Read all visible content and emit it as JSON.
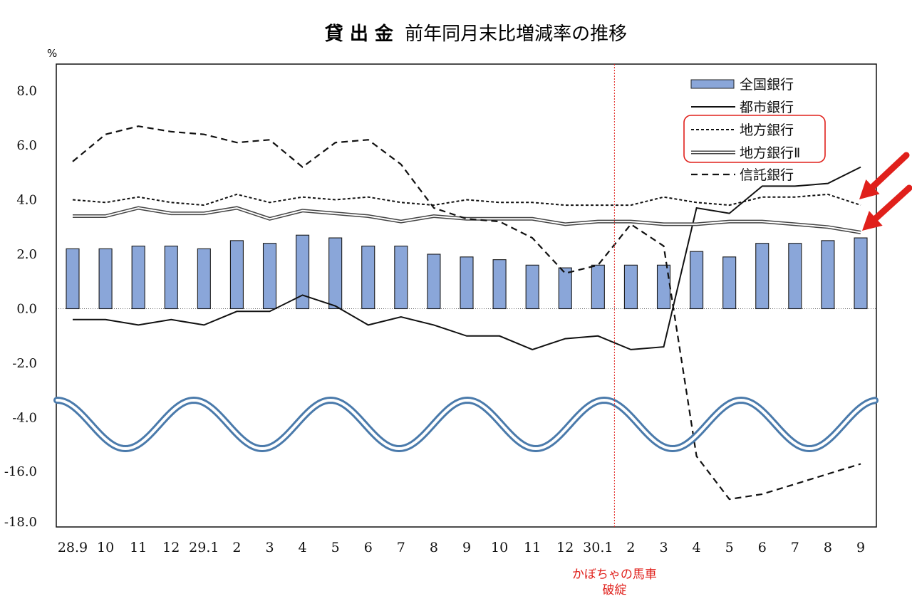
{
  "chart_data": {
    "type": "bar",
    "title": "貸 出 金 前年同月末比増減率の推移",
    "title_parts": {
      "bold": "貸 出 金",
      "rest": "前年同月末比増減率の推移"
    },
    "ylabel": "%",
    "yticks": [
      "8.0",
      "6.0",
      "4.0",
      "2.0",
      "0.0",
      "-2.0",
      "-4.0",
      "-16.0",
      "-18.0"
    ],
    "ylim": [
      -18.0,
      9.0
    ],
    "axis_break": "wave between -4.0 and -16.0",
    "grid": false,
    "legend_position": "top-right",
    "categories": [
      "28.9",
      "10",
      "11",
      "12",
      "29.1",
      "2",
      "3",
      "4",
      "5",
      "6",
      "7",
      "8",
      "9",
      "10",
      "11",
      "12",
      "30.1",
      "2",
      "3",
      "4",
      "5",
      "6",
      "7",
      "8",
      "9"
    ],
    "series": [
      {
        "name": "全国銀行",
        "style": "bar",
        "color": "#8aa6d9",
        "values": [
          2.2,
          2.2,
          2.3,
          2.3,
          2.2,
          2.5,
          2.4,
          2.7,
          2.6,
          2.3,
          2.3,
          2.0,
          1.9,
          1.8,
          1.6,
          1.5,
          1.6,
          1.6,
          1.6,
          2.1,
          1.9,
          2.4,
          2.4,
          2.5,
          2.6
        ]
      },
      {
        "name": "都市銀行",
        "style": "solid",
        "color": "#111111",
        "values": [
          -0.4,
          -0.4,
          -0.6,
          -0.4,
          -0.6,
          -0.1,
          -0.1,
          0.5,
          0.1,
          -0.6,
          -0.3,
          -0.6,
          -1.0,
          -1.0,
          -1.5,
          -1.1,
          -1.0,
          -1.5,
          -1.4,
          3.7,
          3.5,
          4.5,
          4.5,
          4.6,
          5.2
        ]
      },
      {
        "name": "地方銀行",
        "style": "dotted",
        "color": "#111111",
        "values": [
          4.0,
          3.9,
          4.1,
          3.9,
          3.8,
          4.2,
          3.9,
          4.1,
          4.0,
          4.1,
          3.9,
          3.8,
          4.0,
          3.9,
          3.9,
          3.8,
          3.8,
          3.8,
          4.1,
          3.9,
          3.8,
          4.1,
          4.1,
          4.2,
          3.8
        ]
      },
      {
        "name": "地方銀行Ⅱ",
        "style": "double",
        "color": "#555555",
        "values": [
          3.4,
          3.4,
          3.7,
          3.5,
          3.5,
          3.7,
          3.3,
          3.6,
          3.5,
          3.4,
          3.2,
          3.4,
          3.3,
          3.3,
          3.3,
          3.1,
          3.2,
          3.2,
          3.1,
          3.1,
          3.2,
          3.2,
          3.1,
          3.0,
          2.8
        ]
      },
      {
        "name": "信託銀行",
        "style": "dashed",
        "color": "#111111",
        "values": [
          5.4,
          6.4,
          6.7,
          6.5,
          6.4,
          6.1,
          6.2,
          5.2,
          6.1,
          6.2,
          5.3,
          3.7,
          3.3,
          3.2,
          2.6,
          1.3,
          1.6,
          3.1,
          2.3,
          -15.4,
          -17.1,
          -16.9,
          -16.5,
          -16.1,
          -15.7
        ]
      }
    ],
    "annotations": [
      {
        "text_lines": [
          "かぼちゃの馬車",
          "破綻"
        ],
        "at_category_index": 16,
        "color": "#e0201b"
      }
    ],
    "colors": {
      "bar": "#8aa6d9",
      "bar_stroke": "#1a1a1a",
      "highlight": "#e0201b",
      "wave": "#4a7aab"
    }
  }
}
